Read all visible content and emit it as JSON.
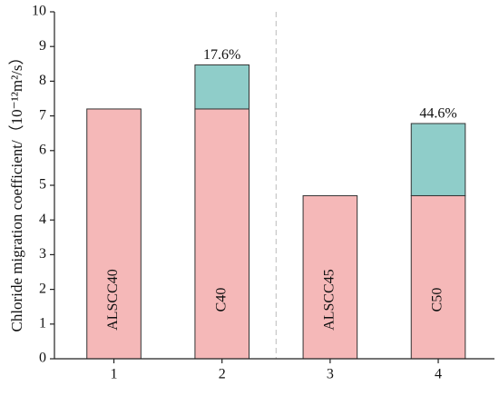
{
  "chart_data": {
    "type": "stacked-bar",
    "y_label": "Chloride migration coefficient/（10⁻¹²m²/s）",
    "x": [
      1,
      2,
      3,
      4
    ],
    "xlim": [
      0.45,
      4.52
    ],
    "xticks": [
      1,
      2,
      3,
      4
    ],
    "ylim": [
      0,
      10
    ],
    "yticks": [
      0,
      1,
      2,
      3,
      4,
      5,
      6,
      7,
      8,
      9,
      10
    ],
    "bar_width": 0.5,
    "bar_labels": [
      "ALSCC40",
      "C40",
      "ALSCC45",
      "C50"
    ],
    "series": [
      {
        "color": "#f5b8b8",
        "values": [
          7.2,
          7.2,
          4.7,
          4.7
        ]
      },
      {
        "color": "#8fcdc9",
        "values": [
          null,
          1.27,
          null,
          2.08
        ]
      }
    ],
    "annotations": [
      {
        "text": "17.6%",
        "x": 2
      },
      {
        "text": "44.6%",
        "x": 4
      }
    ],
    "vlines": [
      2.5
    ]
  }
}
